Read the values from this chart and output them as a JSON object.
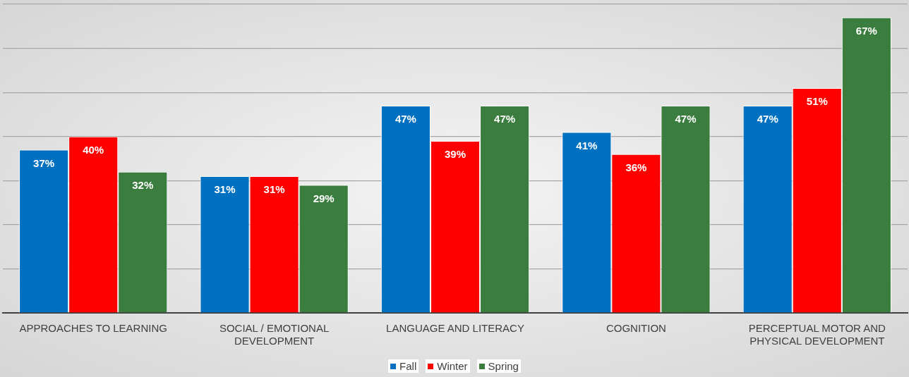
{
  "chart_data": {
    "type": "bar",
    "categories": [
      "APPROACHES TO LEARNING",
      "SOCIAL / EMOTIONAL DEVELOPMENT",
      "LANGUAGE AND LITERACY",
      "COGNITION",
      "PERCEPTUAL MOTOR AND PHYSICAL DEVELOPMENT"
    ],
    "series": [
      {
        "name": "Fall",
        "color": "#0070c0",
        "values": [
          37,
          31,
          47,
          41,
          47
        ],
        "value_labels": [
          "37%",
          "31%",
          "47%",
          "41%",
          "47%"
        ]
      },
      {
        "name": "Winter",
        "color": "#ff0000",
        "values": [
          40,
          31,
          39,
          36,
          51
        ],
        "value_labels": [
          "40%",
          "31%",
          "39%",
          "36%",
          "51%"
        ]
      },
      {
        "name": "Spring",
        "color": "#3a7d3e",
        "values": [
          32,
          29,
          47,
          47,
          67
        ],
        "value_labels": [
          "32%",
          "29%",
          "47%",
          "47%",
          "67%"
        ]
      }
    ],
    "tick_labels": "x",
    "grid": "y",
    "legend": "bottom"
  }
}
